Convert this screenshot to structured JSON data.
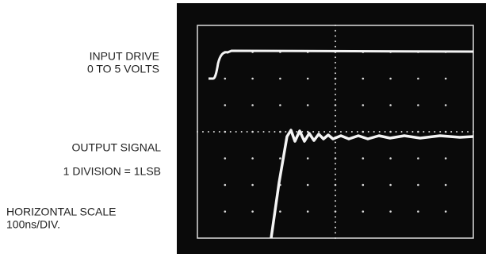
{
  "input": {
    "title": "INPUT DRIVE",
    "range": "0 TO 5 VOLTS"
  },
  "output": {
    "title": "OUTPUT SIGNAL",
    "scale": "1 DIVISION = 1LSB"
  },
  "horizontal": {
    "title": "HORIZONTAL SCALE",
    "scale": "100ns/DIV."
  }
}
